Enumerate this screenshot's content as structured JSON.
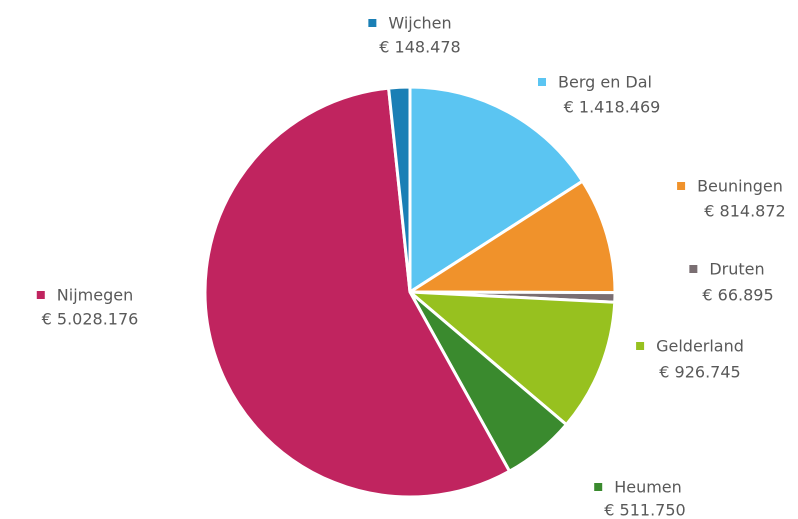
{
  "chart_data": {
    "type": "pie",
    "categories": [
      "Berg en Dal",
      "Beuningen",
      "Druten",
      "Gelderland",
      "Heumen",
      "Nijmegen",
      "Wijchen"
    ],
    "values": [
      1418469,
      814872,
      66895,
      926745,
      511750,
      5028176,
      148478
    ],
    "value_labels": [
      "€ 1.418.469",
      "€ 814.872",
      "€ 66.895",
      "€ 926.745",
      "€ 511.750",
      "€ 5.028.176",
      "€ 148.478"
    ],
    "colors": [
      "#5bc5f2",
      "#f0922b",
      "#7a6e72",
      "#97c11f",
      "#3a8a2e",
      "#c0245f",
      "#1a7fb5"
    ]
  }
}
